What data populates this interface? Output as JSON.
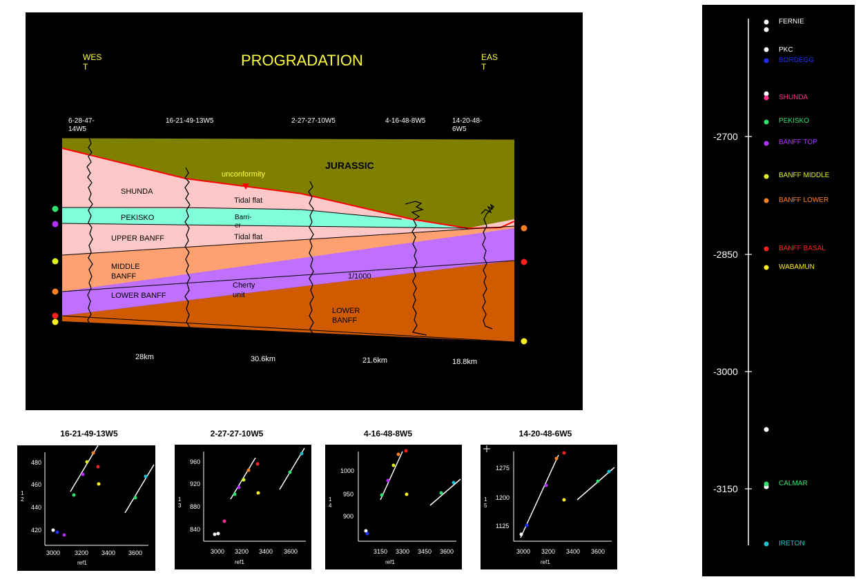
{
  "main": {
    "title": "PROGRADATION",
    "west_label": "WES\nT",
    "east_label": "EAS\nT",
    "wells": [
      "6-28-47-\n14W5",
      "16-21-49-13W5",
      "2-27-27-10W5",
      "4-16-48-8W5",
      "14-20-48-\n6W5"
    ],
    "units": {
      "jurassic": "JURASSIC",
      "unconformity": "unconformity",
      "shunda": "SHUNDA",
      "tidal_flat_upper": "Tidal flat",
      "pekisko": "PEKISKO",
      "barrier": "Barri-\ner",
      "upper_banff": "UPPER BANFF",
      "tidal_flat_lower": "Tidal flat",
      "middle_banff": "MIDDLE\nBANFF",
      "lower_banff_left": "LOWER BANFF",
      "cherty": "Cherty\nunit",
      "ratio": "1/1000",
      "lower_banff_right": "LOWER\nBANFF"
    },
    "distances": [
      "28km",
      "30.6km",
      "21.6km",
      "18.8km"
    ],
    "colors": {
      "jurassic": "#808000",
      "shunda": "#ffc8c8",
      "pekisko": "#80ffd8",
      "middle_banff": "#ffa070",
      "lower_banff_purple": "#c070ff",
      "lower_banff_orange": "#d05a00",
      "unconformity": "#ff0000",
      "title": "#ffff40"
    }
  },
  "legend": {
    "ticks": [
      "-2700",
      "-2850",
      "-3000",
      "-3150"
    ],
    "items": [
      {
        "label": "FERNIE",
        "color": "#ffffff"
      },
      {
        "label": "PKC",
        "color": "#ffffff"
      },
      {
        "label": "BORDEGG",
        "color": "#2030ff"
      },
      {
        "label": "SHUNDA",
        "color": "#ff3090"
      },
      {
        "label": "PEKISKO",
        "color": "#30e070"
      },
      {
        "label": "BANFF TOP",
        "color": "#b030ff"
      },
      {
        "label": "BANFF MIDDLE",
        "color": "#e0f020"
      },
      {
        "label": "BANFF LOWER",
        "color": "#ff8020"
      },
      {
        "label": "BANFF BASAL",
        "color": "#ff2020"
      },
      {
        "label": "WABAMUN",
        "color": "#ffee20"
      },
      {
        "label": "CALMAR",
        "color": "#30e070"
      },
      {
        "label": "IRETON",
        "color": "#20c0d0"
      }
    ]
  },
  "chart_data": [
    {
      "type": "scatter",
      "title": "16-21-49-13W5",
      "xlabel": "ref1",
      "ylabel": "1\n2",
      "xticks": [
        "3000",
        "3200",
        "3400",
        "3600"
      ],
      "yticks": [
        "480",
        "460",
        "440",
        "420"
      ]
    },
    {
      "type": "scatter",
      "title": "2-27-27-10W5",
      "xlabel": "ref1",
      "ylabel": "1\n3",
      "xticks": [
        "3000",
        "3200",
        "3400",
        "3600"
      ],
      "yticks": [
        "960",
        "920",
        "880",
        "840"
      ]
    },
    {
      "type": "scatter",
      "title": "4-16-48-8W5",
      "xlabel": "ref1",
      "ylabel": "1\n4",
      "xticks": [
        "3150",
        "3300",
        "3450",
        "3600"
      ],
      "yticks": [
        "1000",
        "950",
        "900"
      ]
    },
    {
      "type": "scatter",
      "title": "14-20-48-6W5",
      "xlabel": "ref1",
      "ylabel": "1\n5",
      "xticks": [
        "3000",
        "3200",
        "3400",
        "3600"
      ],
      "yticks": [
        "1275",
        "1200",
        "1125"
      ]
    }
  ]
}
